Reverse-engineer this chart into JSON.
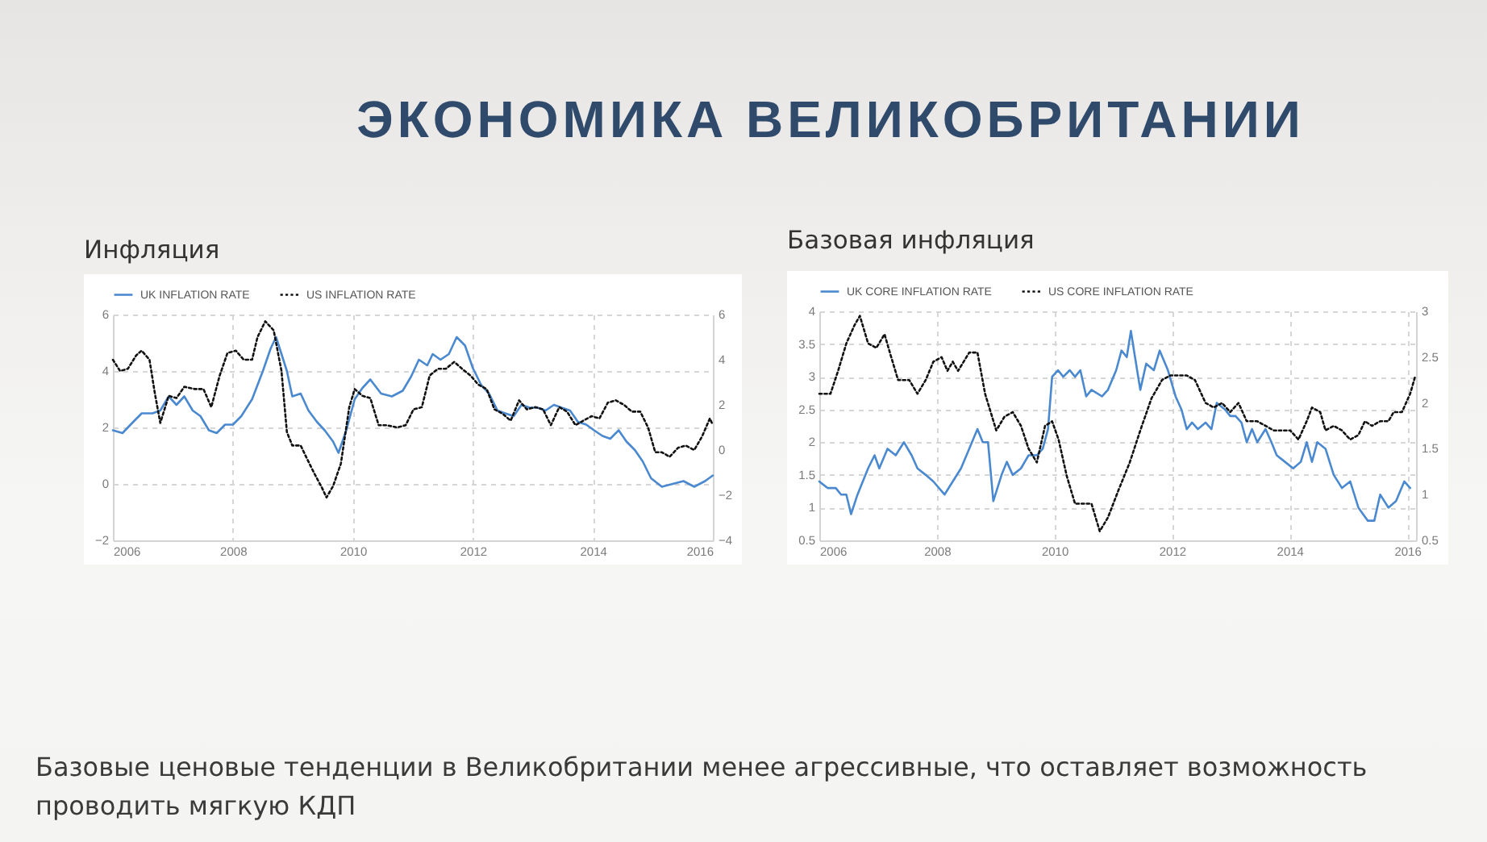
{
  "chart_data": [
    {
      "type": "other",
      "title": "ЭКОНОМИКА ВЕЛИКОБРИТАНИИ"
    },
    {
      "type": "line",
      "title": "Инфляция",
      "xlim": [
        2006,
        2016
      ],
      "xticks": [
        2006,
        2008,
        2010,
        2012,
        2014,
        2016
      ],
      "ylim": [
        -2,
        6
      ],
      "yticks": [
        -2,
        0,
        2,
        4,
        6
      ],
      "y2lim": [
        -4,
        6
      ],
      "y2ticks": [
        -4,
        -2,
        0,
        2,
        4,
        6
      ],
      "grid": true,
      "legend": "top left",
      "series": [
        {
          "name": "UK INFLATION RATE",
          "color": "#4a89d0",
          "line_style": "solid",
          "x": [
            2006.0,
            2006.16,
            2006.34,
            2006.48,
            2006.66,
            2006.79,
            2006.93,
            2007.06,
            2007.19,
            2007.33,
            2007.46,
            2007.6,
            2007.73,
            2007.87,
            2008.0,
            2008.14,
            2008.32,
            2008.5,
            2008.63,
            2008.72,
            2008.81,
            2008.9,
            2008.99,
            2009.13,
            2009.26,
            2009.4,
            2009.53,
            2009.67,
            2009.76,
            2009.89,
            2010.03,
            2010.16,
            2010.29,
            2010.47,
            2010.65,
            2010.83,
            2010.97,
            2011.1,
            2011.24,
            2011.33,
            2011.46,
            2011.6,
            2011.73,
            2011.87,
            2012.0,
            2012.14,
            2012.27,
            2012.41,
            2012.54,
            2012.68,
            2012.81,
            2012.95,
            2013.08,
            2013.21,
            2013.35,
            2013.48,
            2013.62,
            2013.75,
            2013.89,
            2014.02,
            2014.16,
            2014.29,
            2014.43,
            2014.56,
            2014.7,
            2014.83,
            2014.97,
            2015.15,
            2015.33,
            2015.51,
            2015.69,
            2015.87,
            2016.0
          ],
          "values": [
            1.9,
            1.8,
            2.2,
            2.5,
            2.5,
            2.6,
            3.1,
            2.8,
            3.1,
            2.6,
            2.4,
            1.9,
            1.8,
            2.1,
            2.1,
            2.4,
            3.0,
            4.0,
            4.8,
            5.2,
            4.6,
            4.0,
            3.1,
            3.2,
            2.6,
            2.2,
            1.9,
            1.5,
            1.1,
            1.9,
            3.0,
            3.4,
            3.7,
            3.2,
            3.1,
            3.3,
            3.8,
            4.4,
            4.2,
            4.6,
            4.4,
            4.6,
            5.2,
            4.9,
            4.1,
            3.5,
            3.2,
            2.6,
            2.5,
            2.4,
            2.8,
            2.7,
            2.7,
            2.6,
            2.8,
            2.7,
            2.6,
            2.2,
            2.1,
            1.9,
            1.7,
            1.6,
            1.9,
            1.5,
            1.2,
            0.8,
            0.2,
            -0.1,
            0.0,
            0.1,
            -0.1,
            0.1,
            0.3
          ]
        },
        {
          "name": "US INFLATION RATE",
          "color": "#111111",
          "line_style": "dotted",
          "axis": "y2",
          "x": [
            2006.0,
            2006.12,
            2006.25,
            2006.39,
            2006.48,
            2006.61,
            2006.7,
            2006.79,
            2006.93,
            2007.06,
            2007.19,
            2007.37,
            2007.51,
            2007.64,
            2007.78,
            2007.91,
            2008.05,
            2008.18,
            2008.32,
            2008.41,
            2008.54,
            2008.68,
            2008.81,
            2008.9,
            2008.99,
            2009.13,
            2009.22,
            2009.35,
            2009.49,
            2009.56,
            2009.67,
            2009.8,
            2009.94,
            2010.03,
            2010.16,
            2010.29,
            2010.43,
            2010.56,
            2010.74,
            2010.88,
            2011.01,
            2011.15,
            2011.28,
            2011.42,
            2011.55,
            2011.69,
            2011.82,
            2011.96,
            2012.09,
            2012.23,
            2012.36,
            2012.5,
            2012.63,
            2012.77,
            2012.9,
            2013.04,
            2013.17,
            2013.3,
            2013.44,
            2013.57,
            2013.71,
            2013.84,
            2013.98,
            2014.11,
            2014.25,
            2014.38,
            2014.52,
            2014.65,
            2014.79,
            2014.92,
            2015.04,
            2015.15,
            2015.28,
            2015.42,
            2015.55,
            2015.69,
            2015.82,
            2015.95,
            2016.0
          ],
          "values": [
            4.0,
            3.5,
            3.6,
            4.2,
            4.4,
            4.0,
            2.5,
            1.2,
            2.4,
            2.3,
            2.8,
            2.7,
            2.7,
            1.9,
            3.3,
            4.3,
            4.4,
            4.0,
            4.0,
            5.0,
            5.7,
            5.3,
            3.5,
            0.8,
            0.2,
            0.2,
            -0.3,
            -1.0,
            -1.7,
            -2.1,
            -1.6,
            -0.6,
            1.9,
            2.7,
            2.4,
            2.3,
            1.1,
            1.1,
            1.0,
            1.1,
            1.8,
            1.9,
            3.3,
            3.6,
            3.6,
            3.9,
            3.6,
            3.3,
            2.9,
            2.7,
            1.8,
            1.6,
            1.3,
            2.2,
            1.8,
            1.9,
            1.8,
            1.1,
            1.9,
            1.7,
            1.1,
            1.3,
            1.5,
            1.4,
            2.1,
            2.2,
            2.0,
            1.7,
            1.7,
            1.0,
            -0.1,
            -0.1,
            -0.3,
            0.1,
            0.2,
            0.0,
            0.6,
            1.4,
            1.1
          ]
        }
      ]
    },
    {
      "type": "line",
      "title": "Базовая инфляция",
      "xlim": [
        2006,
        2016.15
      ],
      "xticks": [
        2006,
        2008,
        2010,
        2012,
        2014,
        2016
      ],
      "ylim": [
        0.5,
        4
      ],
      "yticks": [
        0.5,
        1,
        1.5,
        2,
        2.5,
        3,
        3.5,
        4
      ],
      "y2lim": [
        0.5,
        3
      ],
      "y2ticks": [
        0.5,
        1,
        1.5,
        2,
        2.5,
        3
      ],
      "grid": true,
      "legend": "top left",
      "series": [
        {
          "name": "UK CORE INFLATION RATE",
          "color": "#4a89d0",
          "line_style": "solid",
          "x": [
            2006.0,
            2006.14,
            2006.28,
            2006.37,
            2006.46,
            2006.54,
            2006.65,
            2006.74,
            2006.83,
            2006.94,
            2007.02,
            2007.16,
            2007.3,
            2007.44,
            2007.57,
            2007.67,
            2007.81,
            2007.94,
            2008.13,
            2008.27,
            2008.41,
            2008.55,
            2008.69,
            2008.78,
            2008.87,
            2008.96,
            2009.1,
            2009.19,
            2009.29,
            2009.43,
            2009.56,
            2009.7,
            2009.8,
            2009.89,
            2009.96,
            2010.06,
            2010.15,
            2010.26,
            2010.35,
            2010.44,
            2010.54,
            2010.63,
            2010.81,
            2010.91,
            2011.05,
            2011.14,
            2011.23,
            2011.3,
            2011.37,
            2011.46,
            2011.56,
            2011.69,
            2011.79,
            2011.93,
            2012.06,
            2012.16,
            2012.25,
            2012.34,
            2012.44,
            2012.57,
            2012.67,
            2012.76,
            2012.9,
            2012.99,
            2013.08,
            2013.18,
            2013.27,
            2013.36,
            2013.45,
            2013.59,
            2013.69,
            2013.78,
            2013.92,
            2014.06,
            2014.19,
            2014.29,
            2014.38,
            2014.47,
            2014.61,
            2014.75,
            2014.89,
            2015.03,
            2015.17,
            2015.33,
            2015.44,
            2015.54,
            2015.68,
            2015.81,
            2015.95,
            2016.05
          ],
          "values": [
            1.4,
            1.3,
            1.3,
            1.2,
            1.2,
            0.9,
            1.2,
            1.4,
            1.6,
            1.8,
            1.6,
            1.9,
            1.8,
            2.0,
            1.8,
            1.6,
            1.5,
            1.4,
            1.2,
            1.4,
            1.6,
            1.9,
            2.2,
            2.0,
            2.0,
            1.1,
            1.5,
            1.7,
            1.5,
            1.6,
            1.8,
            1.8,
            1.9,
            2.2,
            3.0,
            3.1,
            3.0,
            3.1,
            3.0,
            3.1,
            2.7,
            2.8,
            2.7,
            2.8,
            3.1,
            3.4,
            3.3,
            3.7,
            3.3,
            2.8,
            3.2,
            3.1,
            3.4,
            3.1,
            2.7,
            2.5,
            2.2,
            2.3,
            2.2,
            2.3,
            2.2,
            2.6,
            2.5,
            2.4,
            2.4,
            2.3,
            2.0,
            2.2,
            2.0,
            2.2,
            2.0,
            1.8,
            1.7,
            1.6,
            1.7,
            2.0,
            1.7,
            2.0,
            1.9,
            1.5,
            1.3,
            1.4,
            1.0,
            0.8,
            0.8,
            1.2,
            1.0,
            1.1,
            1.4,
            1.3
          ]
        },
        {
          "name": "US CORE INFLATION RATE",
          "color": "#111111",
          "line_style": "dotted",
          "axis": "y2",
          "x": [
            2006.0,
            2006.19,
            2006.32,
            2006.46,
            2006.6,
            2006.69,
            2006.83,
            2006.97,
            2007.11,
            2007.2,
            2007.34,
            2007.53,
            2007.67,
            2007.81,
            2007.94,
            2008.08,
            2008.18,
            2008.27,
            2008.36,
            2008.55,
            2008.69,
            2008.82,
            2009.01,
            2009.15,
            2009.29,
            2009.43,
            2009.56,
            2009.7,
            2009.84,
            2009.96,
            2010.07,
            2010.21,
            2010.35,
            2010.49,
            2010.63,
            2010.77,
            2010.91,
            2011.09,
            2011.28,
            2011.46,
            2011.65,
            2011.83,
            2011.97,
            2012.11,
            2012.25,
            2012.39,
            2012.57,
            2012.71,
            2012.85,
            2012.99,
            2013.13,
            2013.27,
            2013.45,
            2013.59,
            2013.73,
            2014.01,
            2014.15,
            2014.29,
            2014.38,
            2014.52,
            2014.61,
            2014.75,
            2014.89,
            2015.03,
            2015.17,
            2015.28,
            2015.4,
            2015.54,
            2015.68,
            2015.77,
            2015.91,
            2016.05,
            2016.14
          ],
          "values": [
            2.1,
            2.1,
            2.35,
            2.65,
            2.85,
            2.95,
            2.65,
            2.6,
            2.75,
            2.55,
            2.25,
            2.25,
            2.1,
            2.25,
            2.45,
            2.5,
            2.35,
            2.45,
            2.35,
            2.55,
            2.55,
            2.1,
            1.7,
            1.85,
            1.9,
            1.75,
            1.5,
            1.35,
            1.75,
            1.8,
            1.6,
            1.2,
            0.9,
            0.9,
            0.9,
            0.6,
            0.75,
            1.05,
            1.35,
            1.7,
            2.05,
            2.25,
            2.3,
            2.3,
            2.3,
            2.25,
            2.0,
            1.95,
            2.0,
            1.9,
            2.0,
            1.8,
            1.8,
            1.75,
            1.7,
            1.7,
            1.6,
            1.8,
            1.95,
            1.9,
            1.7,
            1.75,
            1.7,
            1.6,
            1.65,
            1.8,
            1.75,
            1.8,
            1.8,
            1.9,
            1.9,
            2.1,
            2.3
          ]
        }
      ]
    },
    {
      "type": "other",
      "annotations": [
        "Базовые ценовые тенденции в Великобритании менее агрессивные, что оставляет возможность проводить мягкую КДП"
      ]
    }
  ]
}
